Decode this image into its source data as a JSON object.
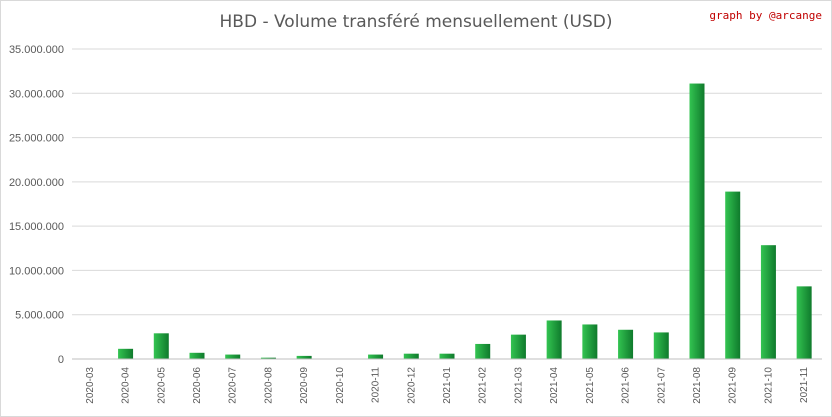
{
  "chart_data": {
    "type": "bar",
    "title": "HBD - Volume transféré mensuellement (USD)",
    "credit": "graph by @arcange",
    "xlabel": "",
    "ylabel": "",
    "ylim": [
      0,
      35000000
    ],
    "y_ticks": [
      0,
      5000000,
      10000000,
      15000000,
      20000000,
      25000000,
      30000000,
      35000000
    ],
    "y_tick_labels": [
      "0",
      "5.000.000",
      "10.000.000",
      "15.000.000",
      "20.000.000",
      "25.000.000",
      "30.000.000",
      "35.000.000"
    ],
    "grid": true,
    "categories": [
      "2020-03",
      "2020-04",
      "2020-05",
      "2020-06",
      "2020-07",
      "2020-08",
      "2020-09",
      "2020-10",
      "2020-11",
      "2020-12",
      "2021-01",
      "2021-02",
      "2021-03",
      "2021-04",
      "2021-05",
      "2021-06",
      "2021-07",
      "2021-08",
      "2021-09",
      "2021-10",
      "2021-11"
    ],
    "values": [
      0,
      1150000,
      2900000,
      700000,
      500000,
      150000,
      350000,
      50000,
      500000,
      600000,
      600000,
      1700000,
      2750000,
      4350000,
      3900000,
      3300000,
      3000000,
      31100000,
      18900000,
      12850000,
      8200000
    ],
    "colors": {
      "bar_light": "#33c451",
      "bar_dark": "#0f7a2c",
      "grid": "#d9d9d9",
      "axis": "#bfbfbf",
      "text": "#595959"
    }
  }
}
